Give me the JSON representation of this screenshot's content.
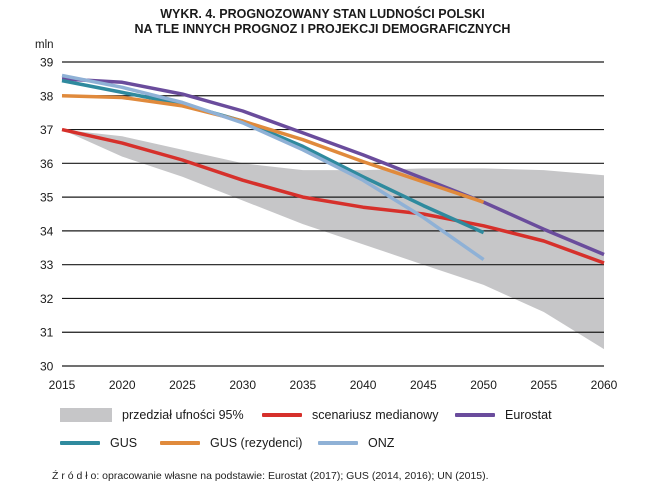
{
  "chart_data": {
    "type": "line",
    "title_lines": [
      "WYKR. 4. PROGNOZOWANY STAN LUDNOŚCI POLSKI",
      "NA TLE INNYCH PROGNOZ I PROJEKCJI DEMOGRAFICZNYCH"
    ],
    "ylabel": "mln",
    "xlabel": "",
    "xlim": [
      2015,
      2060
    ],
    "ylim": [
      30,
      39
    ],
    "x_ticks": [
      2015,
      2020,
      2025,
      2030,
      2035,
      2040,
      2045,
      2050,
      2055,
      2060
    ],
    "y_ticks": [
      30,
      31,
      32,
      33,
      34,
      35,
      36,
      37,
      38,
      39
    ],
    "grid": "horizontal",
    "band": {
      "name": "przedział ufności 95%",
      "color": "#c6c6c8",
      "x": [
        2015,
        2020,
        2025,
        2030,
        2035,
        2040,
        2045,
        2050,
        2055,
        2060
      ],
      "upper": [
        37.0,
        36.8,
        36.4,
        36.0,
        35.8,
        35.8,
        35.85,
        35.85,
        35.8,
        35.65
      ],
      "lower": [
        37.0,
        36.2,
        35.6,
        34.9,
        34.2,
        33.6,
        33.0,
        32.4,
        31.6,
        30.5
      ]
    },
    "series": [
      {
        "name": "scenariusz medianowy",
        "color": "#d6302b",
        "x": [
          2015,
          2020,
          2025,
          2030,
          2035,
          2040,
          2045,
          2050,
          2055,
          2060
        ],
        "values": [
          37.0,
          36.6,
          36.1,
          35.5,
          35.0,
          34.7,
          34.5,
          34.15,
          33.7,
          33.05
        ]
      },
      {
        "name": "Eurostat",
        "color": "#6a4c9c",
        "x": [
          2015,
          2020,
          2025,
          2030,
          2035,
          2040,
          2045,
          2050,
          2055,
          2060
        ],
        "values": [
          38.5,
          38.4,
          38.05,
          37.55,
          36.9,
          36.25,
          35.55,
          34.85,
          34.05,
          33.3
        ]
      },
      {
        "name": "GUS",
        "color": "#2f8a9e",
        "x": [
          2015,
          2020,
          2025,
          2030,
          2035,
          2040,
          2045,
          2050
        ],
        "values": [
          38.45,
          38.1,
          37.75,
          37.25,
          36.5,
          35.6,
          34.75,
          33.95
        ]
      },
      {
        "name": "GUS (rezydenci)",
        "color": "#e08a3c",
        "x": [
          2015,
          2020,
          2025,
          2030,
          2035,
          2040,
          2045,
          2050
        ],
        "values": [
          38.0,
          37.95,
          37.7,
          37.25,
          36.7,
          36.05,
          35.45,
          34.85
        ]
      },
      {
        "name": "ONZ",
        "color": "#8fb1d6",
        "x": [
          2015,
          2020,
          2025,
          2030,
          2035,
          2040,
          2045,
          2050
        ],
        "values": [
          38.6,
          38.25,
          37.8,
          37.2,
          36.4,
          35.5,
          34.4,
          33.15
        ]
      }
    ],
    "legend_position": "bottom"
  },
  "source": "Ź r ó d ł o: opracowanie własne na podstawie: Eurostat (2017); GUS (2014, 2016); UN (2015)."
}
